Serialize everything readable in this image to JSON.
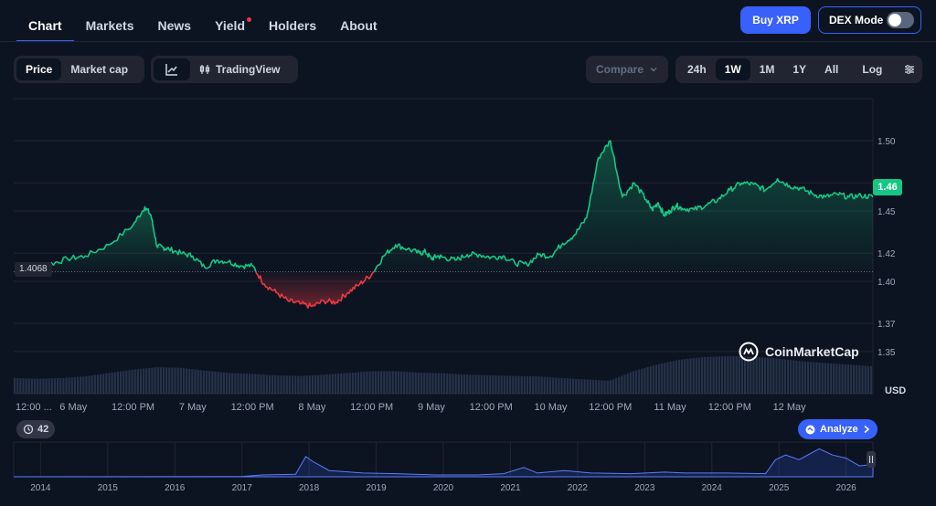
{
  "nav": {
    "tabs": [
      "Chart",
      "Markets",
      "News",
      "Yield",
      "Holders",
      "About"
    ],
    "buy_label": "Buy XRP",
    "dex_label": "DEX Mode"
  },
  "toolbar": {
    "price_label": "Price",
    "marketcap_label": "Market cap",
    "tradingview_label": "TradingView",
    "compare_label": "Compare",
    "ranges": [
      "24h",
      "1W",
      "1M",
      "1Y",
      "All"
    ],
    "active_range": "1W",
    "log_label": "Log"
  },
  "chart": {
    "watermark": "CoinMarketCap",
    "currency": "USD",
    "open_price_label": "1.4068",
    "current_price_label": "1.46",
    "history_count": "42",
    "analyze_label": "Analyze",
    "colors": {
      "up": "#16c784",
      "down": "#ea3943",
      "accent": "#3861fb",
      "volume": "#3a4a6b"
    }
  },
  "chart_data": {
    "type": "line",
    "title": "",
    "xlabel": "",
    "ylabel": "USD",
    "baseline": 1.4068,
    "ylim": [
      1.32,
      1.53
    ],
    "yticks": [
      1.35,
      1.37,
      1.4,
      1.42,
      1.45,
      1.47,
      1.5
    ],
    "ytick_labels": [
      "1.35",
      "1.37",
      "1.40",
      "1.42",
      "1.45",
      "1.47",
      "1.50"
    ],
    "xlim": [
      0,
      7.2
    ],
    "xticks": [
      0,
      0.5,
      1,
      1.5,
      2,
      2.5,
      3,
      3.5,
      4,
      4.5,
      5,
      5.5,
      6,
      6.5
    ],
    "xtick_labels": [
      "12:00 ...",
      "6 May",
      "12:00 PM",
      "7 May",
      "12:00 PM",
      "8 May",
      "12:00 PM",
      "9 May",
      "12:00 PM",
      "10 May",
      "12:00 PM",
      "11 May",
      "12:00 PM",
      "12 May"
    ],
    "series": [
      {
        "x": [
          0.05,
          0.15,
          0.3,
          0.45,
          0.6,
          0.8,
          1.0,
          1.1,
          1.15,
          1.2,
          1.25,
          1.3,
          1.4,
          1.5,
          1.6,
          1.7,
          1.8,
          1.9,
          2.0,
          2.1,
          2.2,
          2.3,
          2.4,
          2.5,
          2.6,
          2.7,
          2.8,
          2.9,
          3.0,
          3.1,
          3.2,
          3.3,
          3.4,
          3.45,
          3.5,
          3.55,
          3.6,
          3.7,
          3.8,
          3.9,
          4.0,
          4.1,
          4.2,
          4.3,
          4.4,
          4.5,
          4.6,
          4.7,
          4.8,
          4.9,
          5.0,
          5.1,
          5.2,
          5.3,
          5.35,
          5.4,
          5.45,
          5.5,
          5.55,
          5.6,
          5.7,
          5.8,
          5.9,
          6.0,
          6.1,
          6.2,
          6.3,
          6.4,
          6.5,
          6.6,
          6.7,
          6.8,
          6.9,
          7.0,
          7.1,
          7.2
        ],
        "y": [
          1.412,
          1.41,
          1.412,
          1.416,
          1.418,
          1.426,
          1.44,
          1.453,
          1.447,
          1.425,
          1.424,
          1.423,
          1.42,
          1.418,
          1.41,
          1.415,
          1.414,
          1.411,
          1.411,
          1.398,
          1.392,
          1.386,
          1.384,
          1.382,
          1.386,
          1.385,
          1.392,
          1.398,
          1.405,
          1.418,
          1.426,
          1.423,
          1.42,
          1.421,
          1.416,
          1.418,
          1.417,
          1.415,
          1.419,
          1.419,
          1.417,
          1.418,
          1.413,
          1.412,
          1.419,
          1.418,
          1.427,
          1.433,
          1.445,
          1.488,
          1.5,
          1.46,
          1.47,
          1.458,
          1.451,
          1.456,
          1.447,
          1.45,
          1.454,
          1.452,
          1.451,
          1.454,
          1.458,
          1.465,
          1.47,
          1.469,
          1.465,
          1.473,
          1.468,
          1.466,
          1.462,
          1.46,
          1.462,
          1.46,
          1.461,
          1.46
        ]
      }
    ],
    "volume": [
      0.3,
      0.28,
      0.3,
      0.35,
      0.45,
      0.55,
      0.62,
      0.6,
      0.52,
      0.45,
      0.42,
      0.38,
      0.36,
      0.4,
      0.45,
      0.5,
      0.5,
      0.46,
      0.44,
      0.4,
      0.38,
      0.36,
      0.35,
      0.3,
      0.26,
      0.22,
      0.5,
      0.7,
      0.85,
      0.92,
      0.95,
      0.93,
      0.88,
      0.8,
      0.75,
      0.7,
      0.65
    ],
    "overview": {
      "type": "area",
      "x_labels": [
        "2014",
        "2015",
        "2016",
        "2017",
        "2018",
        "2019",
        "2020",
        "2021",
        "2022",
        "2023",
        "2024",
        "2025",
        "2026"
      ]
    }
  }
}
